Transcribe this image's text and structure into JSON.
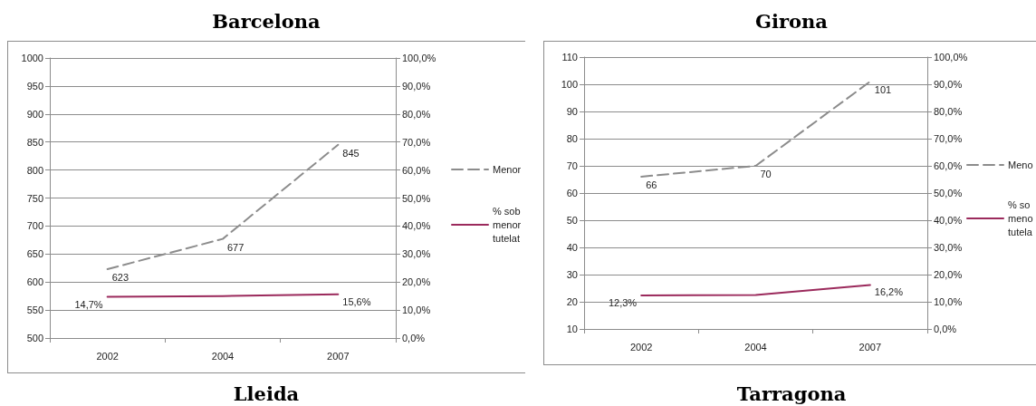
{
  "chart_data": [
    {
      "type": "line",
      "title": "Barcelona",
      "categories": [
        "2002",
        "2004",
        "2007"
      ],
      "series": [
        {
          "name": "Menor",
          "color": "#8c8c8c",
          "line_style": "dashed",
          "values": [
            623,
            677,
            845
          ],
          "value_labels": [
            "623",
            "677",
            "845"
          ]
        },
        {
          "name": "% sob menor tutelat",
          "color": "#9b2a5c",
          "axis": "y2",
          "line_style": "solid",
          "values": [
            14.7,
            15.0,
            15.6
          ],
          "value_labels": [
            "14,7%",
            null,
            "15,6%"
          ]
        }
      ],
      "ylim": [
        500,
        1000
      ],
      "yticks": [
        500,
        550,
        600,
        650,
        700,
        750,
        800,
        850,
        900,
        950,
        1000
      ],
      "y2lim": [
        0,
        100
      ],
      "y2ticks": [
        {
          "value": 0,
          "label": "0,0%"
        },
        {
          "value": 10,
          "label": "10,0%"
        },
        {
          "value": 20,
          "label": "20,0%"
        },
        {
          "value": 30,
          "label": "30,0%"
        },
        {
          "value": 40,
          "label": "40,0%"
        },
        {
          "value": 50,
          "label": "50,0%"
        },
        {
          "value": 60,
          "label": "60,0%"
        },
        {
          "value": 70,
          "label": "70,0%"
        },
        {
          "value": 80,
          "label": "80,0%"
        },
        {
          "value": 90,
          "label": "90,0%"
        },
        {
          "value": 100,
          "label": "100,0%"
        }
      ],
      "grid": "y",
      "legend": "right",
      "marker": "none"
    },
    {
      "type": "line",
      "title": "Girona",
      "categories": [
        "2002",
        "2004",
        "2007"
      ],
      "series": [
        {
          "name": "Meno",
          "color": "#8c8c8c",
          "line_style": "dashed",
          "values": [
            66,
            70,
            101
          ],
          "value_labels": [
            "66",
            "70",
            "101"
          ]
        },
        {
          "name": "% so meno tutela",
          "color": "#9b2a5c",
          "axis": "y2",
          "line_style": "solid",
          "values": [
            12.3,
            12.5,
            16.2
          ],
          "value_labels": [
            "12,3%",
            null,
            "16,2%"
          ]
        }
      ],
      "ylim": [
        10,
        110
      ],
      "yticks": [
        10,
        20,
        30,
        40,
        50,
        60,
        70,
        80,
        90,
        100,
        110
      ],
      "y2lim": [
        0,
        100
      ],
      "y2ticks": [
        {
          "value": 0,
          "label": "0,0%"
        },
        {
          "value": 10,
          "label": "10,0%"
        },
        {
          "value": 20,
          "label": "20,0%"
        },
        {
          "value": 30,
          "label": "30,0%"
        },
        {
          "value": 40,
          "label": "40,0%"
        },
        {
          "value": 50,
          "label": "50,0%"
        },
        {
          "value": 60,
          "label": "60,0%"
        },
        {
          "value": 70,
          "label": "70,0%"
        },
        {
          "value": 80,
          "label": "80,0%"
        },
        {
          "value": 90,
          "label": "90,0%"
        },
        {
          "value": 100,
          "label": "100,0%"
        }
      ],
      "grid": "y",
      "legend": "right",
      "marker": "none"
    },
    {
      "type": "other",
      "title": "Lleida"
    },
    {
      "type": "other",
      "title": "Tarragona"
    }
  ]
}
